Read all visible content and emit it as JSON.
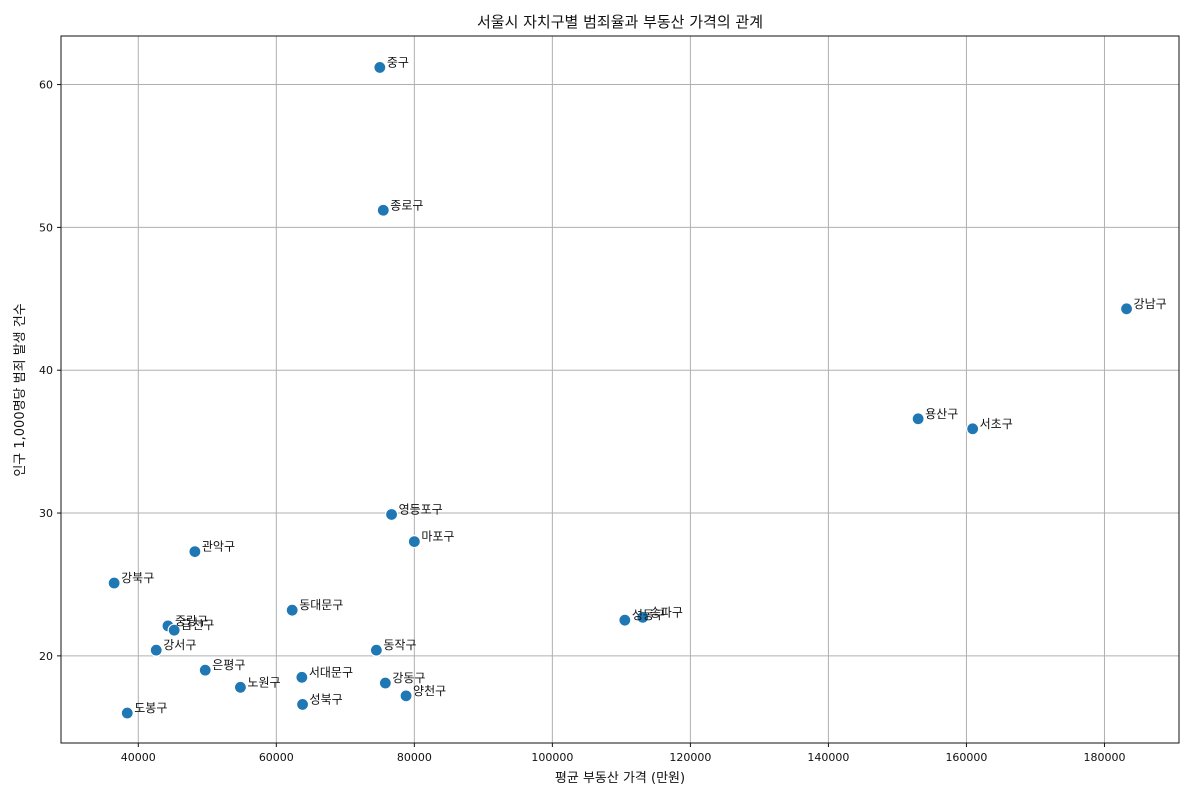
{
  "chart_data": {
    "type": "scatter",
    "title": "서울시 자치구별 범죄율과 부동산 가격의 관계",
    "xlabel": "평균 부동산 가격 (만원)",
    "ylabel": "인구 1,000명당 범죄 발생 건수",
    "xlim": [
      28800,
      190800
    ],
    "ylim": [
      13.9,
      63.4
    ],
    "xticks": [
      40000,
      60000,
      80000,
      100000,
      120000,
      140000,
      160000,
      180000
    ],
    "yticks": [
      20,
      30,
      40,
      50,
      60
    ],
    "grid": true,
    "point_color": "#1f77b4",
    "points": [
      {
        "label": "중구",
        "x": 75000,
        "y": 61.2
      },
      {
        "label": "종로구",
        "x": 75500,
        "y": 51.2
      },
      {
        "label": "강남구",
        "x": 183200,
        "y": 44.3
      },
      {
        "label": "용산구",
        "x": 153000,
        "y": 36.6
      },
      {
        "label": "서초구",
        "x": 160900,
        "y": 35.9
      },
      {
        "label": "영등포구",
        "x": 76700,
        "y": 29.9
      },
      {
        "label": "마포구",
        "x": 80000,
        "y": 28.0
      },
      {
        "label": "관악구",
        "x": 48200,
        "y": 27.3
      },
      {
        "label": "강북구",
        "x": 36500,
        "y": 25.1
      },
      {
        "label": "동대문구",
        "x": 62300,
        "y": 23.2
      },
      {
        "label": "성동구",
        "x": 110500,
        "y": 22.5
      },
      {
        "label": "송파구",
        "x": 113100,
        "y": 22.7
      },
      {
        "label": "중랑구",
        "x": 44300,
        "y": 22.1
      },
      {
        "label": "금천구",
        "x": 45200,
        "y": 21.8
      },
      {
        "label": "강서구",
        "x": 42600,
        "y": 20.4
      },
      {
        "label": "동작구",
        "x": 74500,
        "y": 20.4
      },
      {
        "label": "은평구",
        "x": 49700,
        "y": 19.0
      },
      {
        "label": "서대문구",
        "x": 63700,
        "y": 18.5
      },
      {
        "label": "강동구",
        "x": 75800,
        "y": 18.1
      },
      {
        "label": "노원구",
        "x": 54800,
        "y": 17.8
      },
      {
        "label": "양천구",
        "x": 78800,
        "y": 17.2
      },
      {
        "label": "성북구",
        "x": 63800,
        "y": 16.6
      },
      {
        "label": "도봉구",
        "x": 38400,
        "y": 16.0
      }
    ]
  }
}
